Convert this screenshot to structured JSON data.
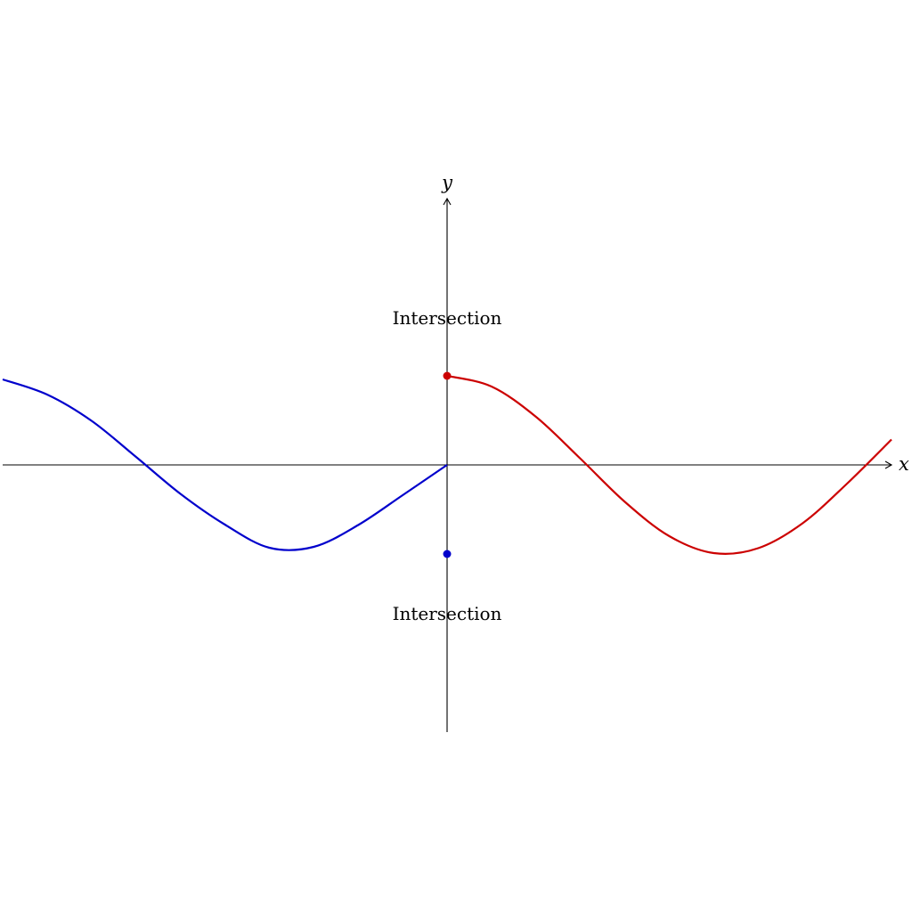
{
  "chart_data": {
    "type": "line",
    "xlabel": "x",
    "ylabel": "y",
    "xlim": [
      -5.0,
      5.0
    ],
    "ylim": [
      -3.0,
      3.0
    ],
    "grid": false,
    "series": [
      {
        "color": "#0000cc",
        "points": [
          [
            -5.0,
            1.92
          ],
          [
            -4.5,
            1.58
          ],
          [
            -4.0,
            0.99
          ],
          [
            -3.5,
            0.18
          ],
          [
            -3.0,
            -0.65
          ],
          [
            -2.5,
            -1.34
          ],
          [
            -2.0,
            -1.86
          ],
          [
            -1.5,
            -1.84
          ],
          [
            -1.0,
            -1.35
          ],
          [
            -0.5,
            -0.68
          ],
          [
            0.0,
            0.0
          ]
        ]
      },
      {
        "color": "#cc0000",
        "points": [
          [
            0.0,
            2.0
          ],
          [
            0.5,
            1.76
          ],
          [
            1.0,
            1.08
          ],
          [
            1.5,
            0.14
          ],
          [
            2.0,
            -0.83
          ],
          [
            2.5,
            -1.6
          ],
          [
            3.0,
            -1.98
          ],
          [
            3.5,
            -1.87
          ],
          [
            4.0,
            -1.31
          ],
          [
            4.5,
            -0.42
          ],
          [
            5.0,
            0.57
          ]
        ]
      }
    ],
    "points": [
      {
        "x": 0,
        "y": 2,
        "color": "#cc0000"
      },
      {
        "x": 0,
        "y": -2,
        "color": "#0000cc"
      }
    ],
    "annotations": [
      "Intersection",
      "Intersection"
    ]
  }
}
